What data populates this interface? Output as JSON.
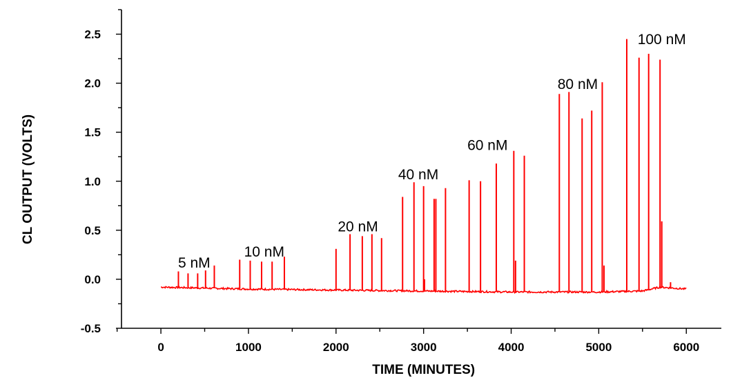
{
  "chart_data": {
    "type": "line",
    "title": "",
    "xlabel": "TIME (MINUTES)",
    "ylabel": "CL OUTPUT (VOLTS)",
    "xlim": [
      -450,
      6400
    ],
    "ylim": [
      -0.5,
      2.75
    ],
    "x_ticks": [
      0,
      1000,
      2000,
      3000,
      4000,
      5000,
      6000
    ],
    "x_tick_labels": [
      "0",
      "1000",
      "2000",
      "3000",
      "4000",
      "5000",
      "6000"
    ],
    "y_ticks": [
      -0.5,
      0.0,
      0.5,
      1.0,
      1.5,
      2.0,
      2.5
    ],
    "y_tick_labels": [
      "-0.5",
      "0.0",
      "0.5",
      "1.0",
      "1.5",
      "2.0",
      "2.5"
    ],
    "grid": false,
    "color": "#ff0000",
    "baseline": [
      [
        0,
        -0.08
      ],
      [
        1000,
        -0.1
      ],
      [
        2000,
        -0.11
      ],
      [
        3000,
        -0.12
      ],
      [
        4000,
        -0.13
      ],
      [
        5000,
        -0.13
      ],
      [
        5500,
        -0.12
      ],
      [
        5700,
        -0.08
      ],
      [
        6000,
        -0.1
      ]
    ],
    "peaks": [
      {
        "x": 200,
        "y": 0.08
      },
      {
        "x": 310,
        "y": 0.06
      },
      {
        "x": 420,
        "y": 0.06
      },
      {
        "x": 510,
        "y": 0.09
      },
      {
        "x": 610,
        "y": 0.14
      },
      {
        "x": 900,
        "y": 0.2
      },
      {
        "x": 1020,
        "y": 0.19
      },
      {
        "x": 1150,
        "y": 0.18
      },
      {
        "x": 1270,
        "y": 0.18
      },
      {
        "x": 1410,
        "y": 0.23
      },
      {
        "x": 2000,
        "y": 0.31
      },
      {
        "x": 2160,
        "y": 0.46
      },
      {
        "x": 2300,
        "y": 0.44
      },
      {
        "x": 2410,
        "y": 0.46
      },
      {
        "x": 2520,
        "y": 0.42
      },
      {
        "x": 2760,
        "y": 0.84
      },
      {
        "x": 2890,
        "y": 0.99
      },
      {
        "x": 3000,
        "y": 0.95
      },
      {
        "x": 3120,
        "y": 0.82
      },
      {
        "x": 3140,
        "y": 0.82
      },
      {
        "x": 3250,
        "y": 0.93
      },
      {
        "x": 3520,
        "y": 1.01
      },
      {
        "x": 3650,
        "y": 1.0
      },
      {
        "x": 3830,
        "y": 1.18
      },
      {
        "x": 4030,
        "y": 1.31
      },
      {
        "x": 4150,
        "y": 1.26
      },
      {
        "x": 4550,
        "y": 1.89
      },
      {
        "x": 4660,
        "y": 1.91
      },
      {
        "x": 4810,
        "y": 1.64
      },
      {
        "x": 4920,
        "y": 1.72
      },
      {
        "x": 5040,
        "y": 2.01
      },
      {
        "x": 5320,
        "y": 2.45
      },
      {
        "x": 5460,
        "y": 2.26
      },
      {
        "x": 5570,
        "y": 2.3
      },
      {
        "x": 5700,
        "y": 2.24
      },
      {
        "x": 3010,
        "y": 0.0
      },
      {
        "x": 4050,
        "y": 0.19
      },
      {
        "x": 5060,
        "y": 0.14
      },
      {
        "x": 5720,
        "y": 0.59
      },
      {
        "x": 5820,
        "y": -0.03
      }
    ],
    "annotations": [
      {
        "text": "5 nM",
        "x": 380,
        "y": 0.12
      },
      {
        "text": "10 nM",
        "x": 1180,
        "y": 0.23
      },
      {
        "text": "20 nM",
        "x": 2250,
        "y": 0.49
      },
      {
        "text": "40 nM",
        "x": 2940,
        "y": 1.02
      },
      {
        "text": "60 nM",
        "x": 3730,
        "y": 1.32
      },
      {
        "text": "80 nM",
        "x": 4760,
        "y": 1.94
      },
      {
        "text": "100 nM",
        "x": 5720,
        "y": 2.4
      }
    ]
  }
}
